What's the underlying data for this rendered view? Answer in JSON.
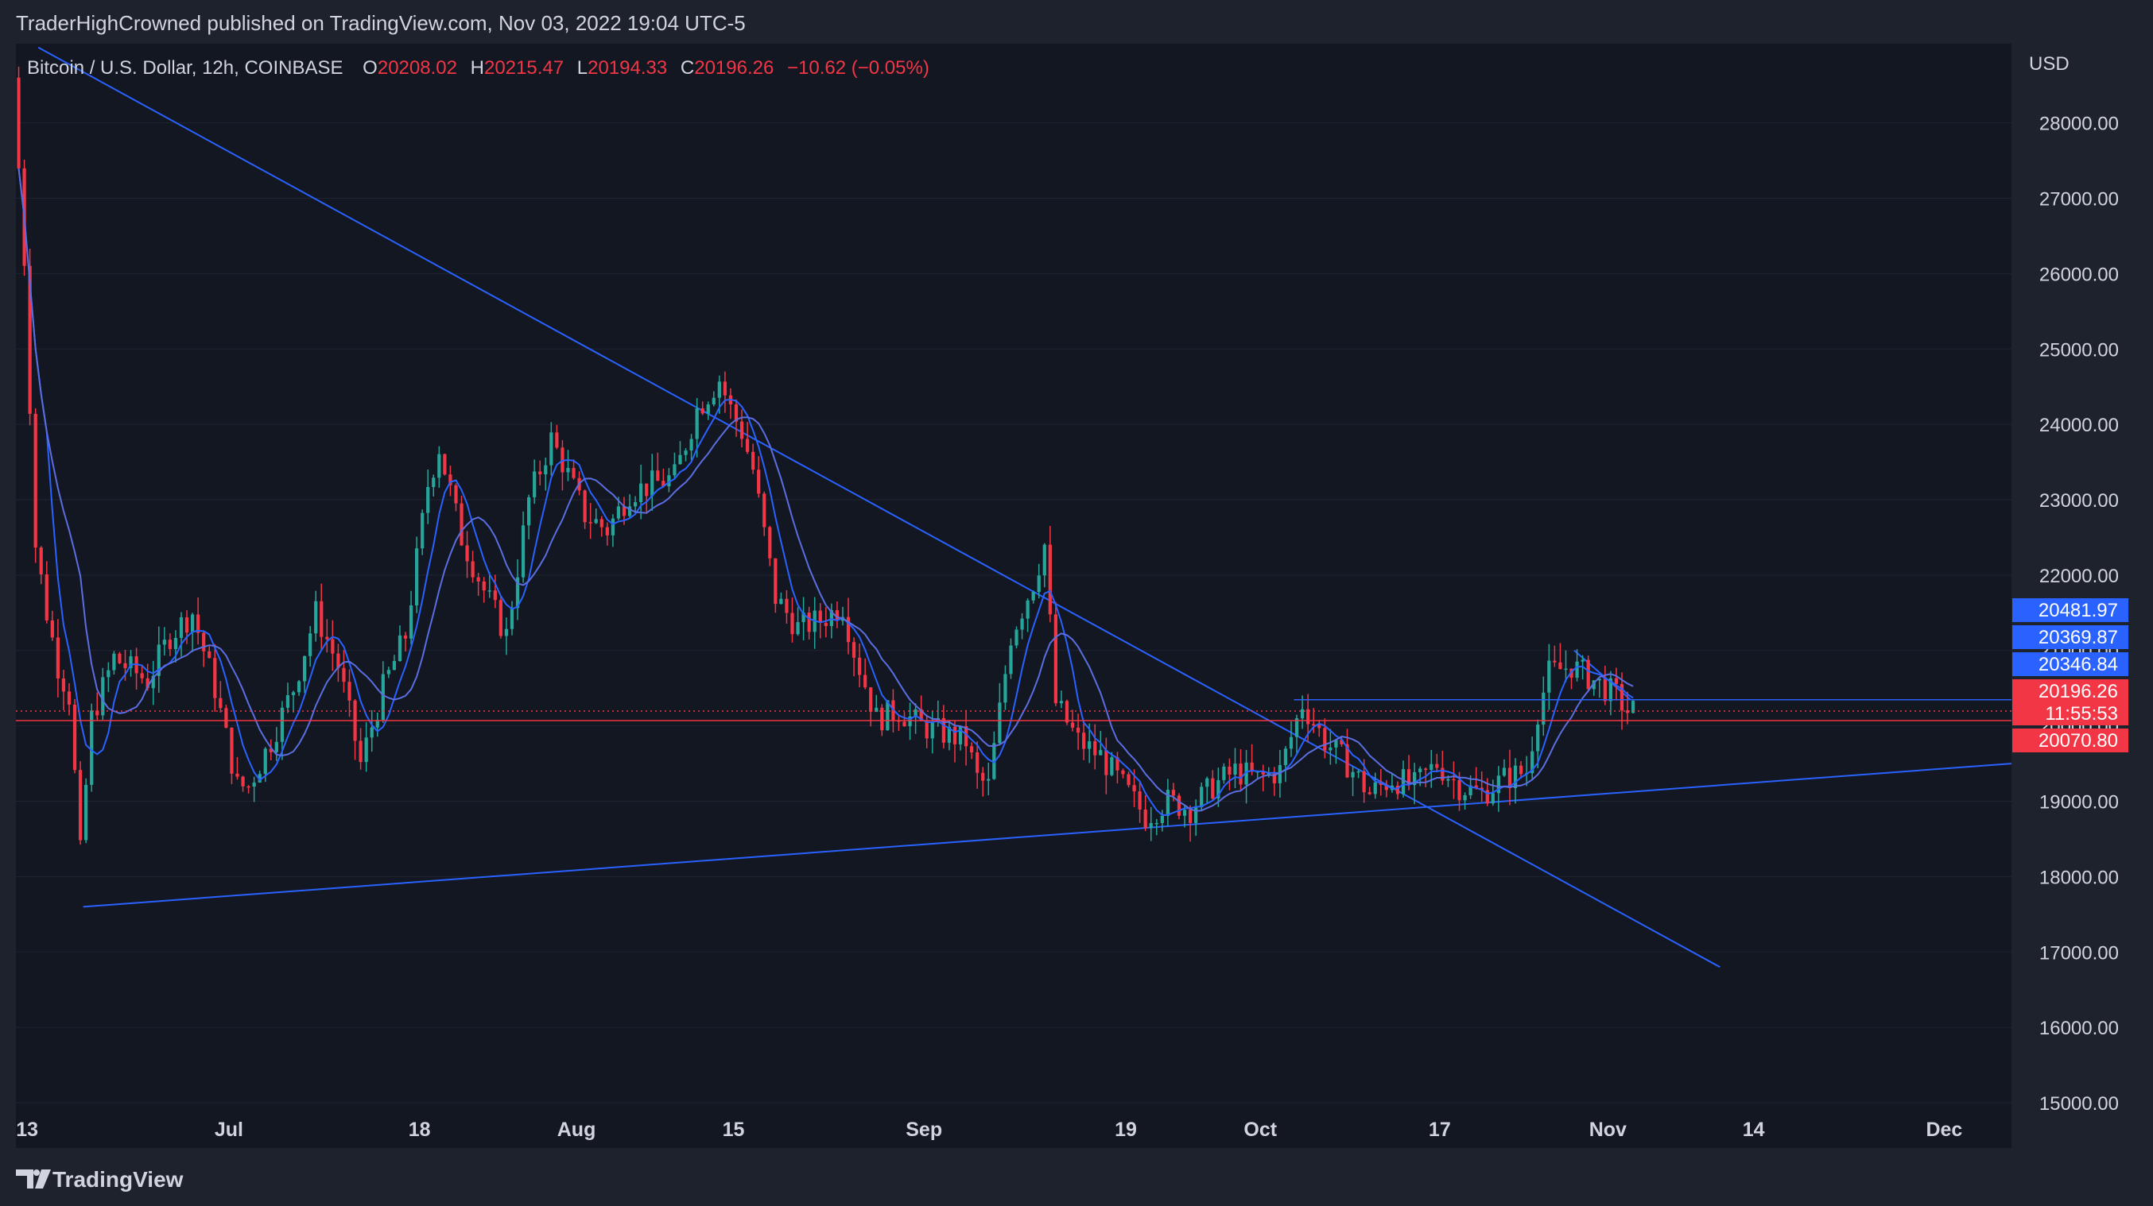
{
  "header": {
    "published_by": "TraderHighCrowned published on TradingView.com, Nov 03, 2022 19:04 UTC-5"
  },
  "legend": {
    "symbol": "Bitcoin / U.S. Dollar, 12h, COINBASE",
    "open_label": "O",
    "open_value": "20208.02",
    "high_label": "H",
    "high_value": "20215.47",
    "low_label": "L",
    "low_value": "20194.33",
    "close_label": "C",
    "close_value": "20196.26",
    "change": "−10.62 (−0.05%)"
  },
  "currency": "USD",
  "footer": {
    "logo_text": "TradingView"
  },
  "colors": {
    "background": "#1e222d",
    "pane": "#131722",
    "up": "#26a69a",
    "down": "#f23645",
    "trendline": "#2962ff",
    "ma_fast": "#2962ff",
    "ma_slow": "#5b6ee1",
    "axis_text": "#d1d4dc",
    "legend_value": "#f23645"
  },
  "chart_data": {
    "type": "candlestick",
    "symbol": "Bitcoin / U.S. Dollar",
    "interval": "12h",
    "exchange": "COINBASE",
    "y_axis": {
      "ticks": [
        "15000.00",
        "16000.00",
        "17000.00",
        "18000.00",
        "19000.00",
        "20000.00",
        "21000.00",
        "22000.00",
        "23000.00",
        "24000.00",
        "25000.00",
        "26000.00",
        "27000.00",
        "28000.00"
      ],
      "tick_values": [
        15000,
        16000,
        17000,
        18000,
        19000,
        20000,
        21000,
        22000,
        23000,
        24000,
        25000,
        26000,
        27000,
        28000
      ],
      "range": [
        14400,
        29050
      ],
      "unit": "USD"
    },
    "x_axis": {
      "labels": [
        "13",
        "Jul",
        "18",
        "Aug",
        "15",
        "Sep",
        "19",
        "Oct",
        "17",
        "Nov",
        "14",
        "Dec"
      ],
      "label_dates": [
        "2022-06-13",
        "2022-07-01",
        "2022-07-18",
        "2022-08-01",
        "2022-08-15",
        "2022-09-01",
        "2022-09-19",
        "2022-10-01",
        "2022-10-17",
        "2022-11-01",
        "2022-11-14",
        "2022-12-01"
      ],
      "range": [
        "2022-06-12",
        "2022-12-07"
      ]
    },
    "price_labels": [
      {
        "value": "20481.97",
        "price": 20481.97,
        "color": "#2962ff"
      },
      {
        "value": "20369.87",
        "price": 20369.87,
        "color": "#2962ff"
      },
      {
        "value": "20346.84",
        "price": 20346.84,
        "color": "#2962ff"
      },
      {
        "value": "20196.26",
        "price": 20196.26,
        "color": "#f23645"
      },
      {
        "value": "11:55:53",
        "color": "#f23645"
      },
      {
        "value": "20070.80",
        "price": 20070.8,
        "color": "#f23645"
      }
    ],
    "horizontal_lines": [
      {
        "price": 20070.8,
        "color": "#f23645",
        "style": "solid"
      },
      {
        "price": 20196.26,
        "color": "#f23645",
        "style": "dotted"
      },
      {
        "price": 20346.84,
        "color": "#2962ff",
        "style": "solid",
        "start": "2022-10-04"
      }
    ],
    "trendlines": [
      {
        "points": [
          [
            "2022-06-14",
            29000
          ],
          [
            "2022-11-11",
            16800
          ]
        ],
        "color": "#2962ff"
      },
      {
        "points": [
          [
            "2022-06-18",
            17600
          ],
          [
            "2022-12-07",
            19500
          ]
        ],
        "color": "#2962ff"
      },
      {
        "points": [
          [
            "2022-10-29",
            21000
          ],
          [
            "2022-11-03",
            20350
          ]
        ],
        "color": "#2962ff"
      }
    ],
    "candle_anchors": [
      [
        "2022-06-12",
        28600
      ],
      [
        "2022-06-13",
        26200
      ],
      [
        "2022-06-14",
        22400
      ],
      [
        "2022-06-15",
        21500
      ],
      [
        "2022-06-16",
        20800
      ],
      [
        "2022-06-17",
        20400
      ],
      [
        "2022-06-18",
        18300
      ],
      [
        "2022-06-19",
        20100
      ],
      [
        "2022-06-21",
        20900
      ],
      [
        "2022-06-24",
        20600
      ],
      [
        "2022-06-26",
        21200
      ],
      [
        "2022-06-28",
        21500
      ],
      [
        "2022-06-30",
        20500
      ],
      [
        "2022-07-02",
        19200
      ],
      [
        "2022-07-03",
        19200
      ],
      [
        "2022-07-05",
        19800
      ],
      [
        "2022-07-07",
        20500
      ],
      [
        "2022-07-09",
        21500
      ],
      [
        "2022-07-11",
        20800
      ],
      [
        "2022-07-13",
        19500
      ],
      [
        "2022-07-15",
        20500
      ],
      [
        "2022-07-17",
        21200
      ],
      [
        "2022-07-19",
        23200
      ],
      [
        "2022-07-20",
        23700
      ],
      [
        "2022-07-22",
        22500
      ],
      [
        "2022-07-24",
        21800
      ],
      [
        "2022-07-26",
        21200
      ],
      [
        "2022-07-28",
        23000
      ],
      [
        "2022-07-30",
        23800
      ],
      [
        "2022-07-31",
        23500
      ],
      [
        "2022-08-02",
        22800
      ],
      [
        "2022-08-04",
        22600
      ],
      [
        "2022-08-06",
        23100
      ],
      [
        "2022-08-08",
        23200
      ],
      [
        "2022-08-10",
        23300
      ],
      [
        "2022-08-12",
        24200
      ],
      [
        "2022-08-14",
        24600
      ],
      [
        "2022-08-15",
        24200
      ],
      [
        "2022-08-16",
        23900
      ],
      [
        "2022-08-17",
        23400
      ],
      [
        "2022-08-19",
        21700
      ],
      [
        "2022-08-21",
        21300
      ],
      [
        "2022-08-23",
        21400
      ],
      [
        "2022-08-25",
        21600
      ],
      [
        "2022-08-26",
        21000
      ],
      [
        "2022-08-28",
        20100
      ],
      [
        "2022-08-30",
        20200
      ],
      [
        "2022-09-01",
        20000
      ],
      [
        "2022-09-03",
        19900
      ],
      [
        "2022-09-05",
        19800
      ],
      [
        "2022-09-06",
        19300
      ],
      [
        "2022-09-07",
        19200
      ],
      [
        "2022-09-09",
        21200
      ],
      [
        "2022-09-11",
        21900
      ],
      [
        "2022-09-12",
        22400
      ],
      [
        "2022-09-13",
        20300
      ],
      [
        "2022-09-15",
        19800
      ],
      [
        "2022-09-17",
        19600
      ],
      [
        "2022-09-19",
        19200
      ],
      [
        "2022-09-21",
        18800
      ],
      [
        "2022-09-23",
        19000
      ],
      [
        "2022-09-25",
        18900
      ],
      [
        "2022-09-27",
        19200
      ],
      [
        "2022-09-29",
        19400
      ],
      [
        "2022-10-01",
        19300
      ],
      [
        "2022-10-03",
        19400
      ],
      [
        "2022-10-05",
        20300
      ],
      [
        "2022-10-07",
        19800
      ],
      [
        "2022-10-09",
        19500
      ],
      [
        "2022-10-11",
        19100
      ],
      [
        "2022-10-13",
        19300
      ],
      [
        "2022-10-15",
        19200
      ],
      [
        "2022-10-17",
        19500
      ],
      [
        "2022-10-19",
        19200
      ],
      [
        "2022-10-21",
        19100
      ],
      [
        "2022-10-23",
        19300
      ],
      [
        "2022-10-25",
        19400
      ],
      [
        "2022-10-26",
        20200
      ],
      [
        "2022-10-27",
        20700
      ],
      [
        "2022-10-29",
        20800
      ],
      [
        "2022-10-31",
        20600
      ],
      [
        "2022-11-02",
        20400
      ],
      [
        "2022-11-03",
        20200
      ]
    ]
  }
}
